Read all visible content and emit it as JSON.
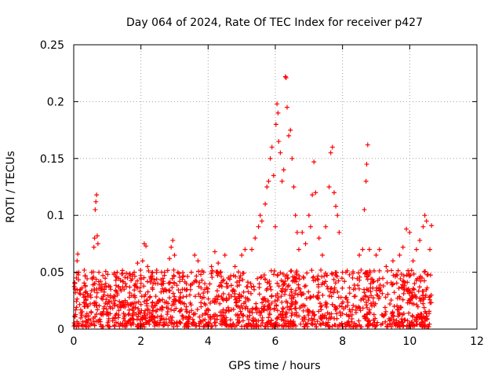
{
  "chart_data": {
    "type": "scatter",
    "title": "Day 064 of 2024, Rate Of TEC Index for receiver p427",
    "xlabel": "GPS time / hours",
    "ylabel": "ROTI / TECUs",
    "xlim": [
      0,
      12
    ],
    "ylim": [
      0,
      0.25
    ],
    "x_ticks": [
      0,
      2,
      4,
      6,
      8,
      10,
      12
    ],
    "x_tick_labels": [
      "0",
      "2",
      "4",
      "6",
      "8",
      "10",
      "12"
    ],
    "y_ticks": [
      0,
      0.05,
      0.1,
      0.15,
      0.2,
      0.25
    ],
    "y_tick_labels": [
      "0",
      "0.05",
      "0.1",
      "0.15",
      "0.2",
      "0.25"
    ],
    "grid": true,
    "marker": "+",
    "color": "#ff0000",
    "series": [
      {
        "name": "ROTI",
        "points": [
          [
            0.05,
            0.032
          ],
          [
            0.08,
            0.045
          ],
          [
            0.1,
            0.06
          ],
          [
            0.12,
            0.066
          ],
          [
            0.15,
            0.05
          ],
          [
            0.2,
            0.035
          ],
          [
            0.3,
            0.028
          ],
          [
            0.4,
            0.02
          ],
          [
            0.5,
            0.03
          ],
          [
            0.55,
            0.045
          ],
          [
            0.6,
            0.072
          ],
          [
            0.62,
            0.08
          ],
          [
            0.64,
            0.105
          ],
          [
            0.66,
            0.112
          ],
          [
            0.68,
            0.118
          ],
          [
            0.7,
            0.082
          ],
          [
            0.72,
            0.075
          ],
          [
            0.75,
            0.05
          ],
          [
            0.8,
            0.042
          ],
          [
            0.9,
            0.03
          ],
          [
            1.0,
            0.022
          ],
          [
            1.1,
            0.035
          ],
          [
            1.2,
            0.048
          ],
          [
            1.3,
            0.03
          ],
          [
            1.5,
            0.035
          ],
          [
            1.6,
            0.045
          ],
          [
            1.8,
            0.05
          ],
          [
            1.9,
            0.058
          ],
          [
            2.0,
            0.045
          ],
          [
            2.05,
            0.06
          ],
          [
            2.1,
            0.075
          ],
          [
            2.15,
            0.073
          ],
          [
            2.2,
            0.055
          ],
          [
            2.3,
            0.045
          ],
          [
            2.5,
            0.04
          ],
          [
            2.7,
            0.05
          ],
          [
            2.85,
            0.062
          ],
          [
            2.9,
            0.072
          ],
          [
            2.95,
            0.078
          ],
          [
            3.0,
            0.065
          ],
          [
            3.1,
            0.05
          ],
          [
            3.3,
            0.035
          ],
          [
            3.5,
            0.05
          ],
          [
            3.6,
            0.065
          ],
          [
            3.7,
            0.06
          ],
          [
            3.9,
            0.04
          ],
          [
            4.1,
            0.055
          ],
          [
            4.2,
            0.068
          ],
          [
            4.3,
            0.058
          ],
          [
            4.5,
            0.065
          ],
          [
            4.6,
            0.045
          ],
          [
            4.8,
            0.055
          ],
          [
            5.0,
            0.065
          ],
          [
            5.1,
            0.07
          ],
          [
            5.3,
            0.07
          ],
          [
            5.4,
            0.08
          ],
          [
            5.5,
            0.09
          ],
          [
            5.55,
            0.1
          ],
          [
            5.6,
            0.095
          ],
          [
            5.7,
            0.11
          ],
          [
            5.75,
            0.125
          ],
          [
            5.8,
            0.13
          ],
          [
            5.85,
            0.15
          ],
          [
            5.9,
            0.16
          ],
          [
            5.95,
            0.135
          ],
          [
            6.0,
            0.09
          ],
          [
            6.02,
            0.18
          ],
          [
            6.05,
            0.198
          ],
          [
            6.08,
            0.19
          ],
          [
            6.1,
            0.165
          ],
          [
            6.15,
            0.155
          ],
          [
            6.2,
            0.13
          ],
          [
            6.25,
            0.14
          ],
          [
            6.3,
            0.222
          ],
          [
            6.32,
            0.221
          ],
          [
            6.35,
            0.195
          ],
          [
            6.4,
            0.17
          ],
          [
            6.45,
            0.175
          ],
          [
            6.5,
            0.15
          ],
          [
            6.55,
            0.125
          ],
          [
            6.6,
            0.1
          ],
          [
            6.65,
            0.085
          ],
          [
            6.7,
            0.07
          ],
          [
            6.8,
            0.085
          ],
          [
            6.9,
            0.075
          ],
          [
            7.0,
            0.1
          ],
          [
            7.05,
            0.09
          ],
          [
            7.1,
            0.118
          ],
          [
            7.15,
            0.147
          ],
          [
            7.2,
            0.12
          ],
          [
            7.3,
            0.08
          ],
          [
            7.4,
            0.065
          ],
          [
            7.5,
            0.09
          ],
          [
            7.6,
            0.125
          ],
          [
            7.65,
            0.155
          ],
          [
            7.7,
            0.16
          ],
          [
            7.75,
            0.12
          ],
          [
            7.8,
            0.108
          ],
          [
            7.85,
            0.1
          ],
          [
            7.9,
            0.085
          ],
          [
            8.0,
            0.05
          ],
          [
            8.1,
            0.05
          ],
          [
            8.3,
            0.045
          ],
          [
            8.5,
            0.065
          ],
          [
            8.6,
            0.07
          ],
          [
            8.65,
            0.105
          ],
          [
            8.7,
            0.13
          ],
          [
            8.72,
            0.145
          ],
          [
            8.75,
            0.162
          ],
          [
            8.8,
            0.07
          ],
          [
            9.0,
            0.065
          ],
          [
            9.1,
            0.07
          ],
          [
            9.3,
            0.055
          ],
          [
            9.5,
            0.06
          ],
          [
            9.7,
            0.065
          ],
          [
            9.8,
            0.072
          ],
          [
            9.9,
            0.088
          ],
          [
            10.0,
            0.085
          ],
          [
            10.1,
            0.06
          ],
          [
            10.2,
            0.07
          ],
          [
            10.3,
            0.078
          ],
          [
            10.4,
            0.09
          ],
          [
            10.45,
            0.1
          ],
          [
            10.5,
            0.095
          ],
          [
            10.6,
            0.07
          ],
          [
            10.65,
            0.091
          ]
        ],
        "dense_band": {
          "x_range": [
            0.0,
            10.65
          ],
          "y_range": [
            0.0,
            0.05
          ]
        }
      }
    ]
  }
}
